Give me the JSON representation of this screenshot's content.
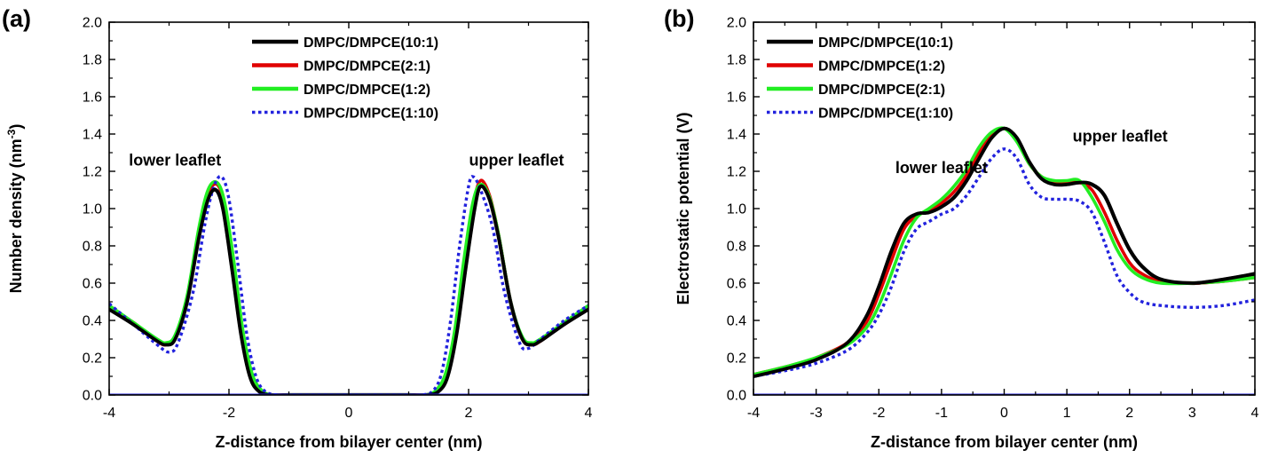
{
  "chart_data": [
    {
      "panel_label": "(a)",
      "type": "line",
      "title": "",
      "xlabel": "Z-distance from bilayer center (nm)",
      "ylabel": "Number density (nm",
      "ylabel_sup": "-3",
      "ylabel_suffix": ")",
      "xlim": [
        -4,
        4
      ],
      "ylim": [
        0,
        2
      ],
      "xticks": [
        -4,
        -2,
        0,
        2,
        4
      ],
      "xtick_labels": [
        "-4",
        "-2",
        "0",
        "2",
        "4"
      ],
      "yticks": [
        0,
        0.2,
        0.4,
        0.6,
        0.8,
        1.0,
        1.2,
        1.4,
        1.6,
        1.8,
        2.0
      ],
      "ytick_labels": [
        "0.0",
        "0.2",
        "0.4",
        "0.6",
        "0.8",
        "1.0",
        "1.2",
        "1.4",
        "1.6",
        "1.8",
        "2.0"
      ],
      "legend_position": "top-right",
      "annotations": [
        {
          "text": "lower leaflet",
          "x": -2.9,
          "y": 1.23
        },
        {
          "text": "upper leaflet",
          "x": 2.8,
          "y": 1.23
        }
      ],
      "series": [
        {
          "name": "DMPC/DMPCE(10:1)",
          "color": "#000000",
          "style": "solid",
          "x": [
            -4,
            -3.6,
            -3.2,
            -3.05,
            -2.9,
            -2.7,
            -2.5,
            -2.35,
            -2.22,
            -2.1,
            -1.95,
            -1.8,
            -1.65,
            -1.5,
            -1.3,
            -1.0,
            -0.5,
            0,
            0.5,
            1.0,
            1.3,
            1.5,
            1.65,
            1.8,
            1.95,
            2.1,
            2.2,
            2.35,
            2.5,
            2.7,
            2.9,
            3.05,
            3.2,
            3.6,
            4
          ],
          "y": [
            0.46,
            0.38,
            0.29,
            0.27,
            0.3,
            0.5,
            0.85,
            1.05,
            1.1,
            1.0,
            0.68,
            0.33,
            0.1,
            0.02,
            0.0,
            0.0,
            0.0,
            0.0,
            0.0,
            0.0,
            0.0,
            0.02,
            0.1,
            0.33,
            0.68,
            1.0,
            1.12,
            1.05,
            0.85,
            0.5,
            0.3,
            0.27,
            0.29,
            0.38,
            0.46
          ]
        },
        {
          "name": "DMPC/DMPCE(2:1)",
          "color": "#e00000",
          "style": "solid",
          "x": [
            -4,
            -3.6,
            -3.2,
            -3.05,
            -2.9,
            -2.7,
            -2.5,
            -2.35,
            -2.2,
            -2.08,
            -1.93,
            -1.78,
            -1.63,
            -1.48,
            -1.3,
            -1.0,
            -0.5,
            0,
            0.5,
            1.0,
            1.3,
            1.48,
            1.63,
            1.78,
            1.93,
            2.08,
            2.2,
            2.35,
            2.5,
            2.7,
            2.9,
            3.05,
            3.2,
            3.6,
            4
          ],
          "y": [
            0.47,
            0.39,
            0.29,
            0.27,
            0.31,
            0.52,
            0.88,
            1.08,
            1.13,
            1.02,
            0.7,
            0.34,
            0.11,
            0.02,
            0.0,
            0.0,
            0.0,
            0.0,
            0.0,
            0.0,
            0.0,
            0.02,
            0.11,
            0.34,
            0.7,
            1.02,
            1.15,
            1.07,
            0.86,
            0.5,
            0.3,
            0.27,
            0.29,
            0.39,
            0.47
          ]
        },
        {
          "name": "DMPC/DMPCE(1:2)",
          "color": "#22ee22",
          "style": "solid",
          "x": [
            -4,
            -3.6,
            -3.2,
            -3.05,
            -2.9,
            -2.7,
            -2.5,
            -2.35,
            -2.2,
            -2.07,
            -1.92,
            -1.77,
            -1.62,
            -1.47,
            -1.3,
            -1.0,
            -0.5,
            0,
            0.5,
            1.0,
            1.3,
            1.47,
            1.62,
            1.77,
            1.92,
            2.07,
            2.2,
            2.35,
            2.5,
            2.7,
            2.9,
            3.05,
            3.2,
            3.6,
            4
          ],
          "y": [
            0.48,
            0.39,
            0.3,
            0.28,
            0.32,
            0.53,
            0.9,
            1.1,
            1.14,
            1.03,
            0.72,
            0.35,
            0.12,
            0.03,
            0.0,
            0.0,
            0.0,
            0.0,
            0.0,
            0.0,
            0.0,
            0.03,
            0.12,
            0.35,
            0.72,
            1.03,
            1.13,
            1.06,
            0.86,
            0.5,
            0.31,
            0.28,
            0.3,
            0.39,
            0.48
          ]
        },
        {
          "name": "DMPC/DMPCE(1:10)",
          "color": "#2222dd",
          "style": "dotted",
          "x": [
            -4,
            -3.6,
            -3.2,
            -3.0,
            -2.85,
            -2.6,
            -2.4,
            -2.25,
            -2.12,
            -2.0,
            -1.85,
            -1.7,
            -1.55,
            -1.4,
            -1.2,
            -1.0,
            -0.5,
            0,
            0.5,
            1.0,
            1.2,
            1.4,
            1.55,
            1.7,
            1.85,
            2.0,
            2.08,
            2.2,
            2.4,
            2.6,
            2.85,
            3.0,
            3.2,
            3.6,
            4
          ],
          "y": [
            0.49,
            0.38,
            0.27,
            0.23,
            0.28,
            0.55,
            0.92,
            1.12,
            1.17,
            1.05,
            0.7,
            0.32,
            0.1,
            0.02,
            0.0,
            0.0,
            0.0,
            0.0,
            0.0,
            0.0,
            0.0,
            0.02,
            0.12,
            0.4,
            0.8,
            1.12,
            1.17,
            1.1,
            0.9,
            0.55,
            0.28,
            0.25,
            0.3,
            0.4,
            0.48
          ]
        }
      ]
    },
    {
      "panel_label": "(b)",
      "type": "line",
      "title": "",
      "xlabel": "Z-distance from bilayer center (nm)",
      "ylabel": "Electrostatic potential (V)",
      "ylabel_sup": "",
      "ylabel_suffix": "",
      "xlim": [
        -4,
        4
      ],
      "ylim": [
        0,
        2
      ],
      "xticks": [
        -4,
        -3,
        -2,
        -1,
        0,
        1,
        2,
        3,
        4
      ],
      "xtick_labels": [
        "-4",
        "-3",
        "-2",
        "-1",
        "0",
        "1",
        "2",
        "3",
        "4"
      ],
      "yticks": [
        0,
        0.2,
        0.4,
        0.6,
        0.8,
        1.0,
        1.2,
        1.4,
        1.6,
        1.8,
        2.0
      ],
      "ytick_labels": [
        "0.0",
        "0.2",
        "0.4",
        "0.6",
        "0.8",
        "1.0",
        "1.2",
        "1.4",
        "1.6",
        "1.8",
        "2.0"
      ],
      "legend_position": "top-left",
      "annotations": [
        {
          "text": "lower leaflet",
          "x": -1.0,
          "y": 1.19
        },
        {
          "text": "upper leaflet",
          "x": 1.85,
          "y": 1.36
        }
      ],
      "series": [
        {
          "name": "DMPC/DMPCE(10:1)",
          "color": "#000000",
          "style": "solid",
          "x": [
            -4,
            -3.5,
            -3,
            -2.5,
            -2.2,
            -2.0,
            -1.8,
            -1.6,
            -1.4,
            -1.2,
            -1.0,
            -0.8,
            -0.6,
            -0.4,
            -0.2,
            0,
            0.2,
            0.4,
            0.6,
            0.8,
            1.0,
            1.2,
            1.4,
            1.6,
            1.8,
            2.0,
            2.2,
            2.5,
            3,
            3.5,
            4
          ],
          "y": [
            0.1,
            0.14,
            0.19,
            0.28,
            0.42,
            0.58,
            0.77,
            0.92,
            0.97,
            0.98,
            1.01,
            1.06,
            1.15,
            1.27,
            1.38,
            1.43,
            1.38,
            1.25,
            1.16,
            1.13,
            1.13,
            1.14,
            1.13,
            1.07,
            0.92,
            0.78,
            0.69,
            0.62,
            0.6,
            0.62,
            0.65
          ]
        },
        {
          "name": "DMPC/DMPCE(1:2)",
          "color": "#e00000",
          "style": "solid",
          "x": [
            -4,
            -3.5,
            -3,
            -2.5,
            -2.2,
            -2.0,
            -1.8,
            -1.6,
            -1.4,
            -1.2,
            -1.0,
            -0.8,
            -0.6,
            -0.4,
            -0.2,
            0,
            0.2,
            0.4,
            0.6,
            0.8,
            1.0,
            1.2,
            1.4,
            1.6,
            1.8,
            2.0,
            2.2,
            2.5,
            3,
            3.5,
            4
          ],
          "y": [
            0.11,
            0.15,
            0.2,
            0.28,
            0.39,
            0.54,
            0.72,
            0.89,
            0.96,
            0.99,
            1.03,
            1.09,
            1.18,
            1.3,
            1.4,
            1.43,
            1.37,
            1.24,
            1.17,
            1.14,
            1.14,
            1.14,
            1.1,
            0.98,
            0.83,
            0.71,
            0.65,
            0.61,
            0.6,
            0.61,
            0.63
          ]
        },
        {
          "name": "DMPC/DMPCE(2:1)",
          "color": "#22ee22",
          "style": "solid",
          "x": [
            -4,
            -3.5,
            -3,
            -2.5,
            -2.2,
            -2.0,
            -1.8,
            -1.6,
            -1.4,
            -1.2,
            -1.0,
            -0.8,
            -0.6,
            -0.4,
            -0.2,
            0,
            0.2,
            0.4,
            0.6,
            0.8,
            1.0,
            1.2,
            1.4,
            1.6,
            1.8,
            2.0,
            2.2,
            2.5,
            3,
            3.5,
            4
          ],
          "y": [
            0.11,
            0.15,
            0.2,
            0.27,
            0.36,
            0.48,
            0.65,
            0.83,
            0.95,
            1.0,
            1.05,
            1.12,
            1.21,
            1.33,
            1.41,
            1.43,
            1.36,
            1.24,
            1.17,
            1.15,
            1.15,
            1.15,
            1.06,
            0.93,
            0.78,
            0.68,
            0.63,
            0.6,
            0.6,
            0.61,
            0.63
          ]
        },
        {
          "name": "DMPC/DMPCE(1:10)",
          "color": "#2222dd",
          "style": "dotted",
          "x": [
            -4,
            -3.5,
            -3,
            -2.5,
            -2.2,
            -2.0,
            -1.8,
            -1.6,
            -1.4,
            -1.2,
            -1.0,
            -0.8,
            -0.6,
            -0.4,
            -0.2,
            0,
            0.2,
            0.4,
            0.6,
            0.8,
            1.0,
            1.2,
            1.4,
            1.6,
            1.8,
            2.0,
            2.2,
            2.5,
            3,
            3.5,
            4
          ],
          "y": [
            0.1,
            0.13,
            0.17,
            0.24,
            0.33,
            0.43,
            0.58,
            0.77,
            0.89,
            0.93,
            0.97,
            1.0,
            1.07,
            1.17,
            1.27,
            1.32,
            1.27,
            1.13,
            1.06,
            1.05,
            1.05,
            1.04,
            0.98,
            0.82,
            0.64,
            0.55,
            0.5,
            0.48,
            0.47,
            0.48,
            0.51
          ]
        }
      ]
    }
  ]
}
